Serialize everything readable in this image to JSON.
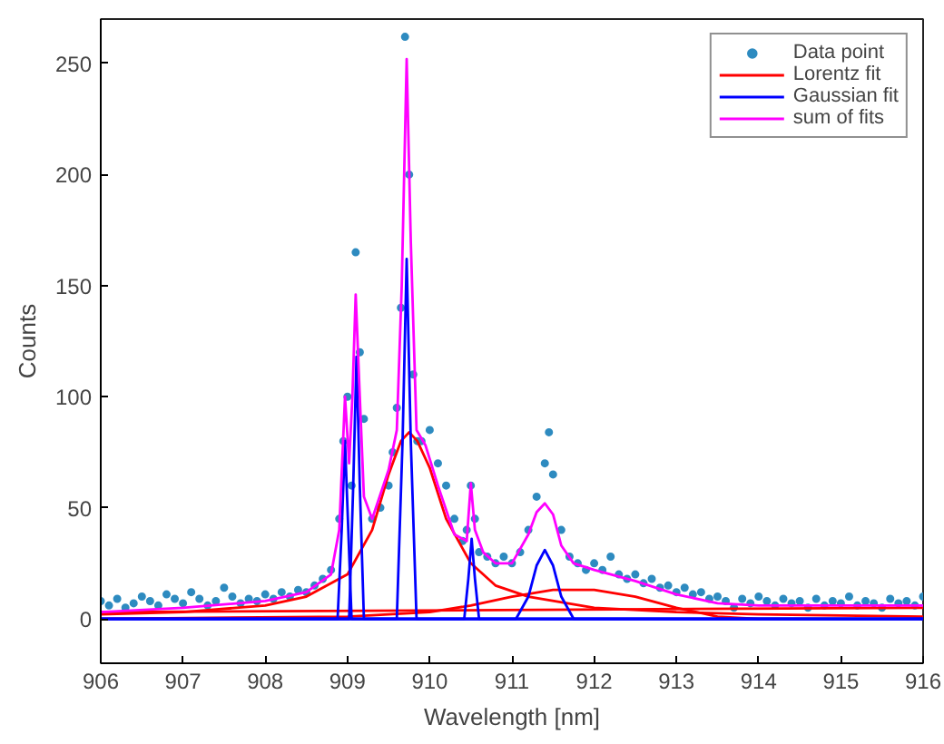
{
  "chart_data": {
    "type": "line",
    "xlabel": "Wavelength [nm]",
    "ylabel": "Counts",
    "xlim": [
      906,
      916
    ],
    "xticks": [
      906,
      907,
      908,
      909,
      910,
      911,
      912,
      913,
      914,
      915,
      916
    ],
    "ylim": [
      -20,
      270
    ],
    "yticks": [
      0,
      50,
      100,
      150,
      200,
      250
    ],
    "grid": false,
    "legend": "top right",
    "series": [
      {
        "name": "Data point",
        "type": "scatter",
        "marker": "circle",
        "color": "#2e8bc0",
        "x": [
          906.0,
          906.1,
          906.2,
          906.3,
          906.4,
          906.5,
          906.6,
          906.7,
          906.8,
          906.9,
          907.0,
          907.1,
          907.2,
          907.3,
          907.4,
          907.5,
          907.6,
          907.7,
          907.8,
          907.9,
          908.0,
          908.1,
          908.2,
          908.3,
          908.4,
          908.5,
          908.6,
          908.7,
          908.8,
          908.9,
          908.95,
          909.0,
          909.05,
          909.1,
          909.15,
          909.2,
          909.3,
          909.4,
          909.5,
          909.55,
          909.6,
          909.65,
          909.7,
          909.75,
          909.8,
          909.85,
          909.9,
          910.0,
          910.1,
          910.2,
          910.3,
          910.4,
          910.45,
          910.5,
          910.55,
          910.6,
          910.7,
          910.8,
          910.9,
          911.0,
          911.1,
          911.2,
          911.3,
          911.4,
          911.45,
          911.5,
          911.6,
          911.7,
          911.8,
          911.9,
          912.0,
          912.1,
          912.2,
          912.3,
          912.4,
          912.5,
          912.6,
          912.7,
          912.8,
          912.9,
          913.0,
          913.1,
          913.2,
          913.3,
          913.4,
          913.5,
          913.6,
          913.7,
          913.8,
          913.9,
          914.0,
          914.1,
          914.2,
          914.3,
          914.4,
          914.5,
          914.6,
          914.7,
          914.8,
          914.9,
          915.0,
          915.1,
          915.2,
          915.3,
          915.4,
          915.5,
          915.6,
          915.7,
          915.8,
          915.9,
          916.0
        ],
        "values": [
          8,
          6,
          9,
          5,
          7,
          10,
          8,
          6,
          11,
          9,
          7,
          12,
          9,
          6,
          8,
          14,
          10,
          7,
          9,
          8,
          11,
          9,
          12,
          10,
          13,
          12,
          15,
          18,
          22,
          45,
          80,
          100,
          60,
          165,
          120,
          90,
          45,
          50,
          60,
          75,
          95,
          140,
          262,
          200,
          110,
          80,
          80,
          85,
          70,
          60,
          45,
          35,
          40,
          60,
          45,
          30,
          28,
          25,
          28,
          25,
          30,
          40,
          55,
          70,
          84,
          65,
          40,
          28,
          25,
          22,
          25,
          22,
          28,
          20,
          18,
          20,
          16,
          18,
          14,
          15,
          12,
          14,
          11,
          12,
          9,
          10,
          8,
          5,
          9,
          7,
          10,
          8,
          6,
          9,
          7,
          8,
          5,
          9,
          6,
          8,
          7,
          10,
          6,
          8,
          7,
          5,
          9,
          7,
          8,
          6,
          10
        ]
      },
      {
        "name": "Lorentz fit",
        "color": "#ff0000",
        "x": [
          906,
          907,
          908,
          908.5,
          909,
          909.3,
          909.5,
          909.65,
          909.75,
          909.85,
          910.0,
          910.2,
          910.5,
          910.8,
          911.2,
          912,
          913,
          914,
          916
        ],
        "values": [
          2,
          3,
          6,
          10,
          20,
          40,
          65,
          80,
          84,
          80,
          68,
          45,
          25,
          15,
          10,
          5,
          3,
          2,
          1
        ]
      },
      {
        "color": "#ff0000",
        "x": [
          906,
          909,
          910,
          910.5,
          911,
          911.5,
          912,
          912.5,
          913,
          913.5,
          914,
          916
        ],
        "values": [
          0,
          1,
          3,
          6,
          10,
          13,
          13,
          10,
          5,
          1,
          0,
          0
        ]
      },
      {
        "color": "#ff0000",
        "x": [
          906,
          916
        ],
        "values": [
          3,
          5
        ]
      },
      {
        "name": "Gaussian fit",
        "color": "#0000ff",
        "x": [
          906,
          908.88,
          908.93,
          908.97,
          909.01,
          909.05,
          916
        ],
        "values": [
          0,
          0,
          40,
          80,
          40,
          0,
          0
        ]
      },
      {
        "color": "#0000ff",
        "x": [
          906,
          909.02,
          909.07,
          909.11,
          909.15,
          909.2,
          916
        ],
        "values": [
          0,
          0,
          60,
          118,
          60,
          0,
          0
        ]
      },
      {
        "color": "#0000ff",
        "x": [
          906,
          909.6,
          909.67,
          909.72,
          909.77,
          909.84,
          916
        ],
        "values": [
          0,
          0,
          80,
          162,
          80,
          0,
          0
        ]
      },
      {
        "color": "#0000ff",
        "x": [
          906,
          910.42,
          910.47,
          910.51,
          910.55,
          910.6,
          916
        ],
        "values": [
          0,
          0,
          18,
          36,
          18,
          0,
          0
        ]
      },
      {
        "color": "#0000ff",
        "x": [
          906,
          911.05,
          911.2,
          911.3,
          911.4,
          911.5,
          911.6,
          911.75,
          916
        ],
        "values": [
          0,
          0,
          10,
          24,
          31,
          24,
          10,
          0,
          0
        ]
      },
      {
        "name": "sum of fits",
        "color": "#ff00ff",
        "x": [
          906,
          907,
          908,
          908.5,
          908.8,
          908.9,
          908.97,
          909.02,
          909.06,
          909.1,
          909.15,
          909.2,
          909.3,
          909.5,
          909.6,
          909.66,
          909.72,
          909.77,
          909.84,
          909.95,
          910.1,
          910.3,
          910.45,
          910.5,
          910.55,
          910.65,
          910.8,
          911.0,
          911.2,
          911.3,
          911.4,
          911.5,
          911.6,
          911.75,
          912,
          912.5,
          913,
          913.5,
          914,
          916
        ],
        "values": [
          3,
          5,
          8,
          12,
          20,
          40,
          100,
          70,
          100,
          146,
          100,
          55,
          45,
          67,
          85,
          150,
          252,
          170,
          85,
          78,
          60,
          38,
          35,
          61,
          40,
          30,
          25,
          25,
          38,
          48,
          52,
          47,
          33,
          25,
          22,
          17,
          11,
          7,
          6,
          6
        ]
      }
    ]
  }
}
